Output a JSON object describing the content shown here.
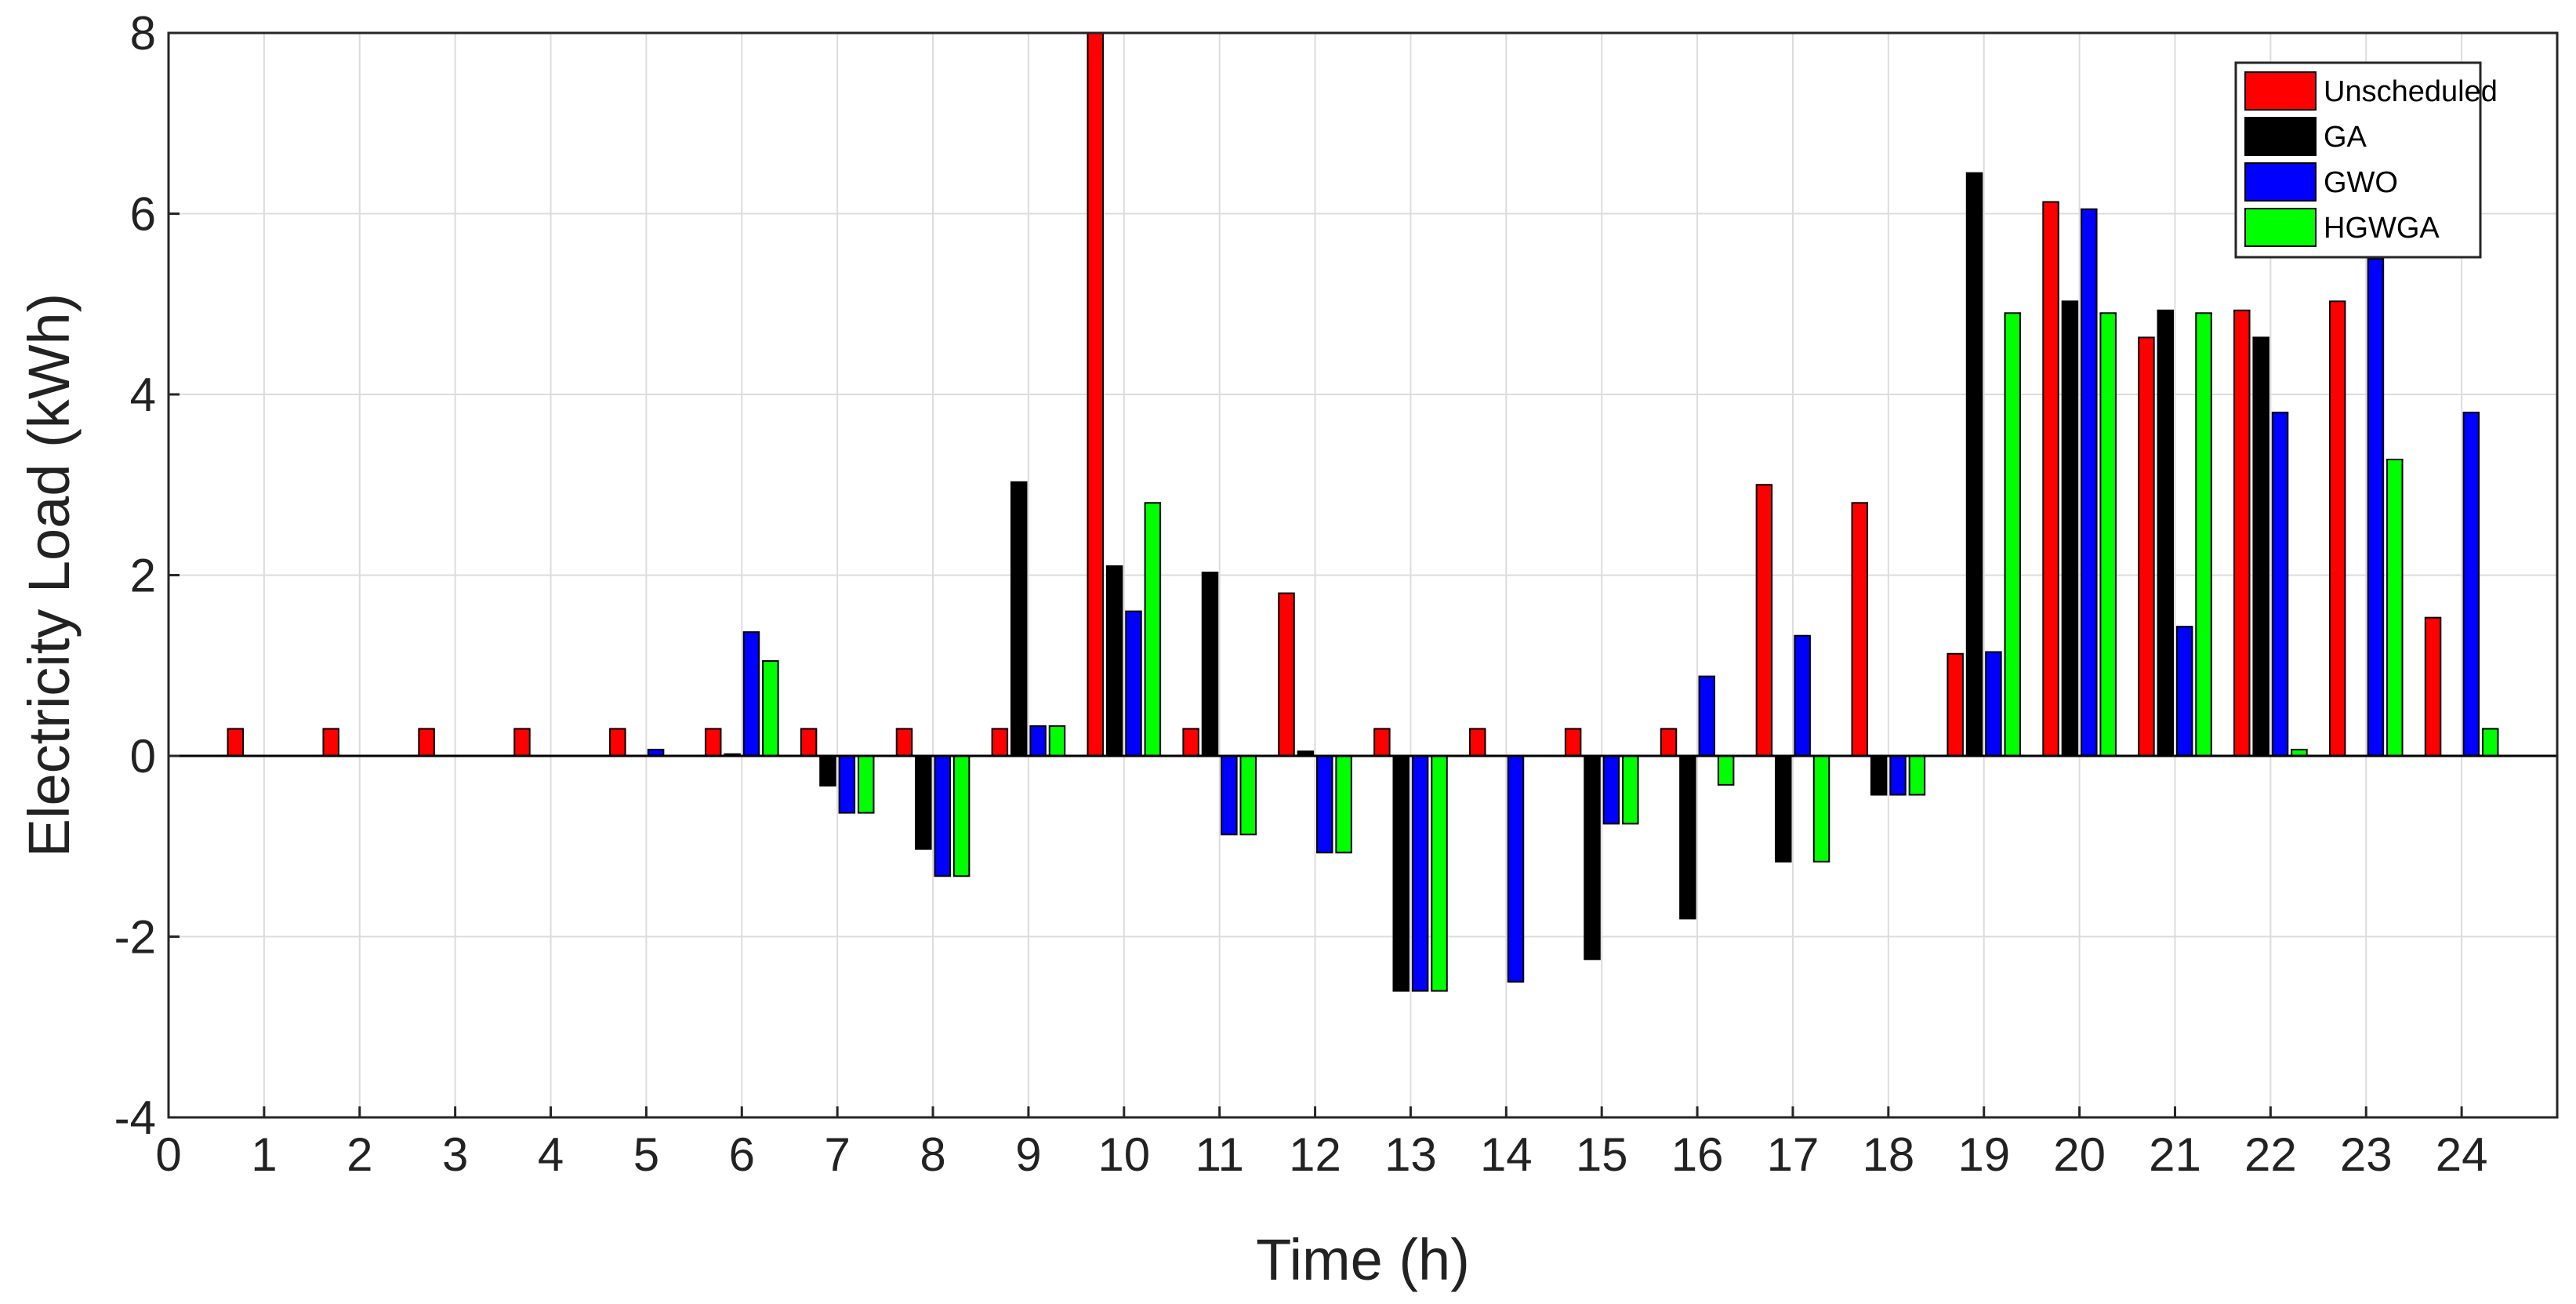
{
  "chart_data": {
    "type": "bar",
    "xlabel": "Time (h)",
    "ylabel": "Electricity Load (kWh)",
    "xlim": [
      0,
      25
    ],
    "ylim": [
      -4,
      8
    ],
    "xticks": [
      0,
      1,
      2,
      3,
      4,
      5,
      6,
      7,
      8,
      9,
      10,
      11,
      12,
      13,
      14,
      15,
      16,
      17,
      18,
      19,
      20,
      21,
      22,
      23,
      24
    ],
    "yticks": [
      -4,
      -2,
      0,
      2,
      4,
      6,
      8
    ],
    "grid": true,
    "legend_position": "top-right",
    "categories": [
      1,
      2,
      3,
      4,
      5,
      6,
      7,
      8,
      9,
      10,
      11,
      12,
      13,
      14,
      15,
      16,
      17,
      18,
      19,
      20,
      21,
      22,
      23,
      24
    ],
    "series": [
      {
        "name": "Unscheduled",
        "color": "#ff0000",
        "values": [
          0.3,
          0.3,
          0.3,
          0.3,
          0.3,
          0.3,
          0.3,
          0.3,
          0.3,
          8.0,
          0.3,
          1.8,
          0.3,
          0.3,
          0.3,
          0.3,
          3.0,
          2.8,
          1.13,
          6.13,
          4.63,
          4.93,
          5.03,
          1.53
        ]
      },
      {
        "name": "GA",
        "color": "#000000",
        "values": [
          0,
          0,
          0,
          0,
          0,
          0.02,
          -0.33,
          -1.03,
          3.03,
          2.1,
          2.03,
          0.05,
          -2.6,
          0,
          -2.25,
          -1.8,
          -1.17,
          -0.43,
          6.45,
          5.03,
          4.93,
          4.63,
          0,
          0
        ]
      },
      {
        "name": "GWO",
        "color": "#0000ff",
        "values": [
          0,
          0,
          0,
          0,
          0.07,
          1.37,
          -0.63,
          -1.33,
          0.33,
          1.6,
          -0.87,
          -1.07,
          -2.6,
          -2.5,
          -0.75,
          0.88,
          1.33,
          -0.43,
          1.15,
          6.05,
          1.43,
          3.8,
          5.5,
          3.8
        ]
      },
      {
        "name": "HGWGA",
        "color": "#00ff00",
        "values": [
          0,
          0,
          0,
          0,
          0,
          1.05,
          -0.63,
          -1.33,
          0.33,
          2.8,
          -0.87,
          -1.07,
          -2.6,
          0,
          -0.75,
          -0.32,
          -1.17,
          -0.43,
          4.9,
          4.9,
          4.9,
          0.07,
          3.28,
          0.3
        ]
      }
    ]
  }
}
